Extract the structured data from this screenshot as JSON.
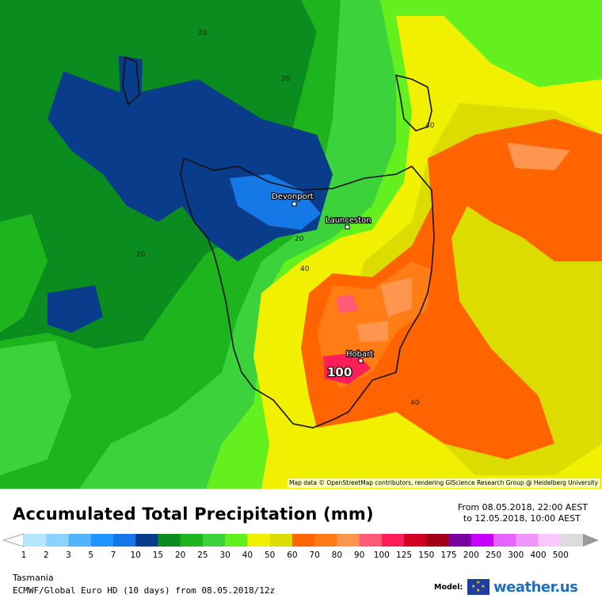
{
  "map": {
    "places": [
      {
        "name": "Devonport"
      },
      {
        "name": "Launceston"
      },
      {
        "name": "Hobart"
      }
    ],
    "contour_labels": [
      "20",
      "20",
      "20",
      "20",
      "40",
      "40",
      "40"
    ],
    "peak_value": "100",
    "attribution": "Map data © OpenStreetMap contributors, rendering GIScience Research Group @ Heidelberg University"
  },
  "legend": {
    "title": "Accumulated Total Precipitation (mm)",
    "from": "From 08.05.2018, 22:00 AEST",
    "to": "to 12.05.2018, 10:00 AEST",
    "ticks": [
      "1",
      "2",
      "3",
      "5",
      "7",
      "10",
      "15",
      "20",
      "25",
      "30",
      "40",
      "50",
      "60",
      "70",
      "80",
      "90",
      "100",
      "125",
      "150",
      "175",
      "200",
      "250",
      "300",
      "400",
      "500"
    ],
    "colors": [
      "#b4e6ff",
      "#8cd2ff",
      "#50b4ff",
      "#1e96ff",
      "#1478e6",
      "#0a3c8c",
      "#0a8c1e",
      "#1eb41e",
      "#3cd23c",
      "#64f01e",
      "#f0f000",
      "#dcdc00",
      "#ff6400",
      "#ff7d14",
      "#ff9650",
      "#ff5a78",
      "#ff1e5a",
      "#d2001e",
      "#a00014",
      "#7800a0",
      "#c800ff",
      "#e664ff",
      "#f096ff",
      "#f8c8ff",
      "#dcdcdc"
    ],
    "region": "Tasmania",
    "model_run": "ECMWF/Global Euro HD (10 days) from 08.05.2018/12z",
    "model_label": "Model:",
    "brand": "weather.us"
  }
}
